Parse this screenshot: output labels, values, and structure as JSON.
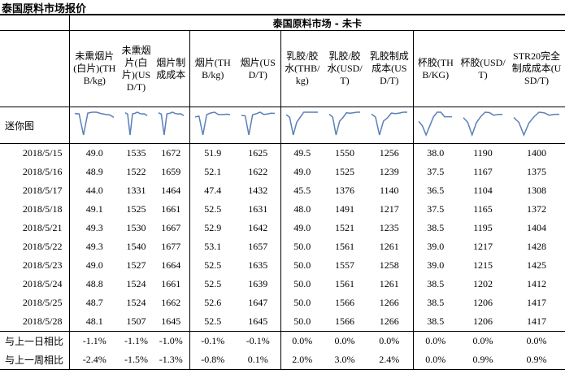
{
  "title": "泰国原料市场报价",
  "table": {
    "group_header": "泰国原料市场 - 未卡",
    "columns": [
      "未熏烟片(白片)(THB/kg)",
      "未熏烟片(白片)(USD/T)",
      "烟片制成成本",
      "烟片(THB/kg)",
      "烟片(USD/T)",
      "乳胶/胶水(THB/kg)",
      "乳胶/胶水(USD/T)",
      "乳胶制成成本(USD/T)",
      "杯胶(THB/KG)",
      "杯胶(USD/T)",
      "STR20完全制成成本(USD/T)"
    ],
    "sparkline_label": "迷你图",
    "rows": [
      [
        "2018/5/15",
        "49.0",
        "1535",
        "1672",
        "51.9",
        "1625",
        "49.5",
        "1550",
        "1256",
        "38.0",
        "1190",
        "1400"
      ],
      [
        "2018/5/16",
        "48.9",
        "1522",
        "1659",
        "52.1",
        "1622",
        "49.0",
        "1525",
        "1239",
        "37.5",
        "1167",
        "1375"
      ],
      [
        "2018/5/17",
        "44.0",
        "1331",
        "1464",
        "47.4",
        "1432",
        "45.5",
        "1376",
        "1140",
        "36.5",
        "1104",
        "1308"
      ],
      [
        "2018/5/18",
        "49.1",
        "1525",
        "1661",
        "52.5",
        "1631",
        "48.0",
        "1491",
        "1217",
        "37.5",
        "1165",
        "1372"
      ],
      [
        "2018/5/21",
        "49.3",
        "1530",
        "1667",
        "52.9",
        "1642",
        "49.0",
        "1521",
        "1235",
        "38.5",
        "1195",
        "1404"
      ],
      [
        "2018/5/22",
        "49.3",
        "1540",
        "1677",
        "53.1",
        "1657",
        "50.0",
        "1561",
        "1261",
        "39.0",
        "1217",
        "1428"
      ],
      [
        "2018/5/23",
        "49.0",
        "1527",
        "1664",
        "52.5",
        "1635",
        "50.0",
        "1557",
        "1258",
        "39.0",
        "1215",
        "1425"
      ],
      [
        "2018/5/24",
        "48.8",
        "1524",
        "1661",
        "52.5",
        "1639",
        "50.0",
        "1561",
        "1261",
        "38.5",
        "1202",
        "1412"
      ],
      [
        "2018/5/25",
        "48.7",
        "1524",
        "1662",
        "52.6",
        "1647",
        "50.0",
        "1566",
        "1266",
        "38.5",
        "1206",
        "1417"
      ],
      [
        "2018/5/28",
        "48.1",
        "1507",
        "1645",
        "52.5",
        "1645",
        "50.0",
        "1566",
        "1266",
        "38.5",
        "1206",
        "1417"
      ]
    ],
    "comparisons": [
      [
        "与上一日相比",
        "-1.1%",
        "-1.1%",
        "-1.0%",
        "-0.1%",
        "-0.1%",
        "0.0%",
        "0.0%",
        "0.0%",
        "0.0%",
        "0.0%",
        "0.0%"
      ],
      [
        "与上一周相比",
        "-2.4%",
        "-1.5%",
        "-1.3%",
        "-0.8%",
        "0.1%",
        "2.0%",
        "3.0%",
        "2.4%",
        "0.0%",
        "0.9%",
        "0.9%"
      ]
    ]
  }
}
